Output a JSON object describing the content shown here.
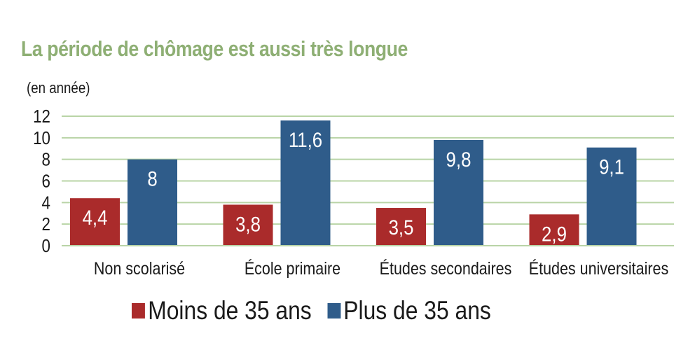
{
  "colors": {
    "title": "#8eaf74",
    "grid": "#b9d4a6",
    "series_moins": "#aa2b2b",
    "series_plus": "#2f5c8a",
    "text": "#1a1a1a"
  },
  "chart_data": {
    "type": "bar",
    "title": "La période de chômage est aussi très longue",
    "ylabel": "(en année)",
    "xlabel": "",
    "categories": [
      "Non scolarisé",
      "École primaire",
      "Études secondaires",
      "Études universitaires"
    ],
    "series": [
      {
        "name": "Moins de 35 ans",
        "values": [
          4.4,
          3.8,
          3.5,
          2.9
        ],
        "labels": [
          "4,4",
          "3,8",
          "3,5",
          "2,9"
        ]
      },
      {
        "name": "Plus de 35 ans",
        "values": [
          8,
          11.6,
          9.8,
          9.1
        ],
        "labels": [
          "8",
          "11,6",
          "9,8",
          "9,1"
        ]
      }
    ],
    "ylim": [
      0,
      12
    ],
    "yticks": [
      0,
      2,
      4,
      6,
      8,
      10,
      12
    ],
    "grid": true,
    "legend": "bottom",
    "data_labels": "inside-top"
  }
}
